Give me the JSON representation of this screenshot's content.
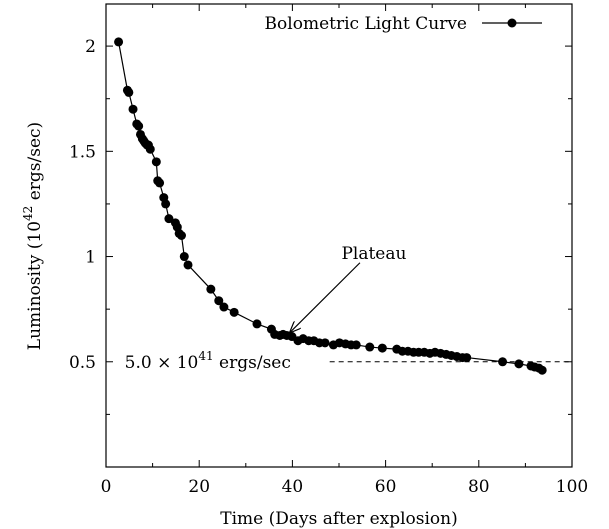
{
  "chart_data": {
    "type": "scatter",
    "xlabel": "Time (Days after explosion)",
    "ylabel_pre": "Luminosity (10",
    "ylabel_sup": "42",
    "ylabel_post": " ergs/sec)",
    "xlim": [
      0,
      100
    ],
    "ylim": [
      0,
      2.2
    ],
    "xticks": [
      0,
      20,
      40,
      60,
      80,
      100
    ],
    "yticks": [
      0.5,
      1,
      1.5,
      2
    ],
    "xtick_labels": [
      "0",
      "20",
      "40",
      "60",
      "80",
      "100"
    ],
    "ytick_labels": [
      "0.5",
      "1",
      "1.5",
      "2"
    ],
    "grid": false,
    "legend_position": "top-right",
    "series": [
      {
        "name": "Bolometric Light Curve",
        "color": "#000000",
        "marker": "filled-circle",
        "line": true,
        "x": [
          2.7,
          4.6,
          4.9,
          5.8,
          6.6,
          7.0,
          7.4,
          7.8,
          8.1,
          8.4,
          8.8,
          9.1,
          9.5,
          10.8,
          11.1,
          11.5,
          12.4,
          12.8,
          13.5,
          14.9,
          15.3,
          15.7,
          16.2,
          16.8,
          17.6,
          22.5,
          24.2,
          25.3,
          27.5,
          32.4,
          35.5,
          36.2,
          37.3,
          38.0,
          38.8,
          39.9,
          41.2,
          42.3,
          43.5,
          44.6,
          45.8,
          47.0,
          48.8,
          50.1,
          51.4,
          52.6,
          53.7,
          56.6,
          59.3,
          62.4,
          63.6,
          64.8,
          66.0,
          67.1,
          68.3,
          69.5,
          70.6,
          71.8,
          73.0,
          74.1,
          75.3,
          76.5,
          77.4,
          85.1,
          88.6,
          91.2,
          92.0,
          92.9,
          93.6
        ],
        "y": [
          2.02,
          1.79,
          1.78,
          1.7,
          1.63,
          1.62,
          1.58,
          1.56,
          1.55,
          1.54,
          1.53,
          1.53,
          1.51,
          1.45,
          1.36,
          1.35,
          1.28,
          1.25,
          1.18,
          1.16,
          1.14,
          1.11,
          1.1,
          1.0,
          0.96,
          0.845,
          0.79,
          0.76,
          0.735,
          0.68,
          0.655,
          0.63,
          0.625,
          0.63,
          0.625,
          0.62,
          0.6,
          0.61,
          0.6,
          0.6,
          0.59,
          0.59,
          0.58,
          0.59,
          0.585,
          0.58,
          0.58,
          0.57,
          0.565,
          0.56,
          0.55,
          0.55,
          0.545,
          0.545,
          0.545,
          0.54,
          0.545,
          0.54,
          0.535,
          0.53,
          0.525,
          0.52,
          0.52,
          0.5,
          0.49,
          0.48,
          0.475,
          0.47,
          0.46
        ]
      }
    ],
    "reference_line": {
      "y": 0.5,
      "style": "dashed",
      "x_start": 48,
      "x_end": 100
    },
    "annotations": {
      "reference_label_pre": "5.0 × 10",
      "reference_label_sup": "41",
      "reference_label_post": " ergs/sec",
      "plateau_label": "Plateau",
      "plateau_arrow_target": [
        39.5,
        0.64
      ],
      "plateau_label_at": [
        57.5,
        0.98
      ]
    }
  }
}
